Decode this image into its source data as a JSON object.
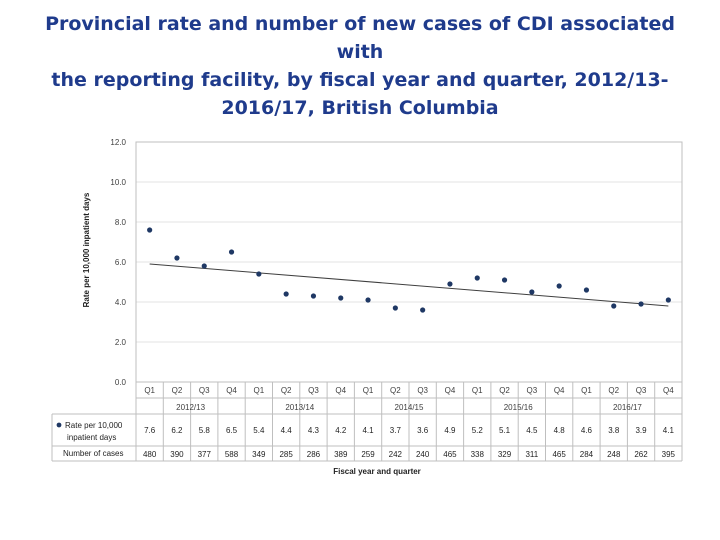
{
  "slide": {
    "title_lines": [
      "Provincial rate and number of new cases of CDI associated with",
      "the reporting facility, by fiscal year and quarter, 2012/13-",
      "2016/17, British Columbia"
    ]
  },
  "chart_data": {
    "type": "scatter",
    "title": "Provincial rate and number of new cases of CDI associated with the reporting facility, by fiscal year and quarter, 2012/13-2016/17, British Columbia",
    "xlabel": "Fiscal year and quarter",
    "ylabel": "Rate per 10,000 inpatient days",
    "ylim": [
      0,
      12
    ],
    "yticks": [
      "0.0",
      "2.0",
      "4.0",
      "6.0",
      "8.0",
      "10.0",
      "12.0"
    ],
    "grid": true,
    "quarters": [
      "Q1",
      "Q2",
      "Q3",
      "Q4",
      "Q1",
      "Q2",
      "Q3",
      "Q4",
      "Q1",
      "Q2",
      "Q3",
      "Q4",
      "Q1",
      "Q2",
      "Q3",
      "Q4",
      "Q1",
      "Q2",
      "Q3",
      "Q4"
    ],
    "fiscal_years": [
      "2012/13",
      "2013/14",
      "2014/15",
      "2015/16",
      "2016/17"
    ],
    "series": [
      {
        "name": "Rate per 10,000 inpatient days",
        "values": [
          7.6,
          6.2,
          5.8,
          6.5,
          5.4,
          4.4,
          4.3,
          4.2,
          4.1,
          3.7,
          3.6,
          4.9,
          5.2,
          5.1,
          4.5,
          4.8,
          4.6,
          3.8,
          3.9,
          4.1
        ],
        "labels": [
          "7.6",
          "6.2",
          "5.8",
          "6.5",
          "5.4",
          "4.4",
          "4.3",
          "4.2",
          "4.1",
          "3.7",
          "3.6",
          "4.9",
          "5.2",
          "5.1",
          "4.5",
          "4.8",
          "4.6",
          "3.8",
          "3.9",
          "4.1"
        ],
        "color": "#1f3864"
      }
    ],
    "trendline": {
      "start": 5.9,
      "end": 3.8,
      "color": "#3f3f3f"
    },
    "table": {
      "row_labels": [
        "Rate per 10,000 inpatient days",
        "Number of cases"
      ],
      "cases": [
        "480",
        "390",
        "377",
        "588",
        "349",
        "285",
        "286",
        "389",
        "259",
        "242",
        "240",
        "465",
        "338",
        "329",
        "311",
        "465",
        "284",
        "248",
        "262",
        "395"
      ]
    }
  }
}
